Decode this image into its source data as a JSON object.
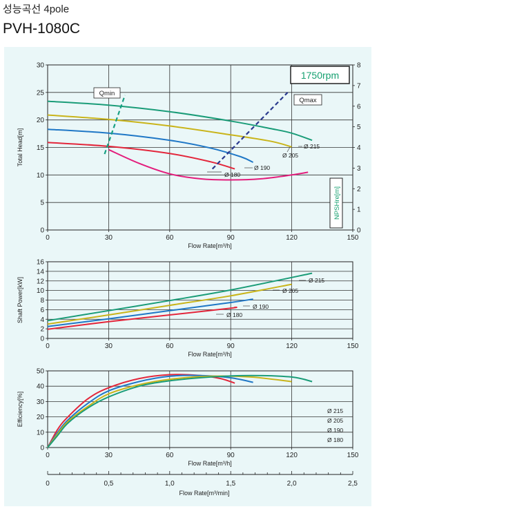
{
  "header": {
    "title": "성능곡선 4pole",
    "model": "PVH-1080C"
  },
  "colors": {
    "panel_bg": "#eaf7f8",
    "grid": "#222222",
    "d215": "#1a9c78",
    "d205": "#c9b41a",
    "d190": "#1f77c6",
    "d180": "#e3263b",
    "min_head": "#e31d7c",
    "qmin": "#18a083",
    "qmax": "#2a3a8e",
    "rpm": "#16a070"
  },
  "chart_data": [
    {
      "type": "line",
      "name": "head",
      "xlabel": "Flow Rate[m³/h]",
      "ylabel": "Total Head[m]",
      "y2label": "NPSHre[m]",
      "xlim": [
        0,
        150
      ],
      "ylim": [
        0,
        30
      ],
      "y2lim": [
        0,
        8
      ],
      "x_ticks": [
        "0",
        "30",
        "60",
        "90",
        "120",
        "150"
      ],
      "y_ticks": [
        "0",
        "5",
        "10",
        "15",
        "20",
        "25",
        "30"
      ],
      "y2_ticks": [
        "0",
        "1",
        "2",
        "3",
        "4",
        "5",
        "6",
        "7",
        "8"
      ],
      "grid": true,
      "speed_label": "1750rpm",
      "qmin_label": "Qmin",
      "qmax_label": "Qmax",
      "series": [
        {
          "label": "Ø 215",
          "color_key": "d215",
          "x": [
            0,
            30,
            60,
            90,
            110,
            120,
            130
          ],
          "y": [
            23.4,
            22.7,
            21.5,
            19.8,
            18.4,
            17.6,
            16.3
          ]
        },
        {
          "label": "Ø 205",
          "color_key": "d205",
          "x": [
            0,
            30,
            60,
            90,
            110,
            120
          ],
          "y": [
            20.9,
            20.1,
            18.9,
            17.3,
            16.1,
            15.1
          ]
        },
        {
          "label": "Ø 190",
          "color_key": "d190",
          "x": [
            0,
            30,
            60,
            80,
            95,
            101
          ],
          "y": [
            18.3,
            17.6,
            16.3,
            14.9,
            13.3,
            12.3
          ]
        },
        {
          "label": "Ø 180",
          "color_key": "d180",
          "x": [
            0,
            30,
            60,
            80,
            92
          ],
          "y": [
            15.9,
            15.2,
            13.9,
            12.4,
            11.1
          ]
        },
        {
          "label": "",
          "color_key": "min_head",
          "x": [
            30,
            45,
            60,
            75,
            90,
            105,
            120,
            128
          ],
          "y": [
            14.6,
            12.1,
            10.2,
            9.3,
            9.1,
            9.3,
            10.0,
            10.5
          ]
        }
      ],
      "qmin_line": {
        "x": [
          28,
          38
        ],
        "y": [
          13.8,
          24.5
        ]
      },
      "qmax_line": {
        "x": [
          81,
          118
        ],
        "y": [
          11.1,
          25.0
        ]
      }
    },
    {
      "type": "line",
      "name": "power",
      "xlabel": "Flow Rate[m³/h]",
      "ylabel": "Shaft Power[kW]",
      "xlim": [
        0,
        150
      ],
      "ylim": [
        0,
        16
      ],
      "x_ticks": [
        "0",
        "30",
        "60",
        "90",
        "120",
        "150"
      ],
      "y_ticks": [
        "0",
        "2",
        "4",
        "6",
        "8",
        "10",
        "12",
        "14",
        "16"
      ],
      "grid": true,
      "series": [
        {
          "label": "Ø 215",
          "color_key": "d215",
          "x": [
            0,
            30,
            60,
            90,
            130
          ],
          "y": [
            3.7,
            5.8,
            7.9,
            10.1,
            13.6
          ]
        },
        {
          "label": "Ø 205",
          "color_key": "d205",
          "x": [
            0,
            30,
            60,
            90,
            120
          ],
          "y": [
            3.0,
            4.9,
            6.9,
            8.9,
            11.3
          ]
        },
        {
          "label": "Ø 190",
          "color_key": "d190",
          "x": [
            0,
            30,
            60,
            90,
            101
          ],
          "y": [
            2.5,
            4.1,
            5.8,
            7.5,
            8.2
          ]
        },
        {
          "label": "Ø 180",
          "color_key": "d180",
          "x": [
            0,
            30,
            60,
            90,
            92
          ],
          "y": [
            1.9,
            3.5,
            4.9,
            6.3,
            6.5
          ]
        }
      ]
    },
    {
      "type": "line",
      "name": "efficiency",
      "xlabel": "Flow Rate[m³/h]",
      "ylabel": "Efficiency[%]",
      "xlim": [
        0,
        150
      ],
      "ylim": [
        0,
        50
      ],
      "x_ticks": [
        "0",
        "30",
        "60",
        "90",
        "120",
        "150"
      ],
      "y_ticks": [
        "0",
        "10",
        "20",
        "30",
        "40",
        "50"
      ],
      "grid": true,
      "legend": [
        "Ø 215",
        "Ø 205",
        "Ø 190",
        "Ø 180"
      ],
      "series": [
        {
          "label": "Ø 180",
          "color_key": "d180",
          "x": [
            0,
            5,
            10,
            20,
            30,
            45,
            60,
            75,
            85,
            92
          ],
          "y": [
            0,
            12,
            20,
            32,
            39,
            45,
            47.5,
            47,
            45,
            42
          ]
        },
        {
          "label": "Ø 190",
          "color_key": "d190",
          "x": [
            0,
            5,
            10,
            20,
            30,
            45,
            60,
            75,
            90,
            101
          ],
          "y": [
            0,
            10,
            18,
            29,
            37,
            43,
            46.5,
            47,
            45.5,
            42.5
          ]
        },
        {
          "label": "Ø 205",
          "color_key": "d205",
          "x": [
            0,
            5,
            10,
            20,
            30,
            45,
            60,
            80,
            100,
            120
          ],
          "y": [
            0,
            9,
            17,
            27,
            35,
            41,
            44.5,
            46.5,
            46,
            43
          ]
        },
        {
          "label": "Ø 215",
          "color_key": "d215",
          "x": [
            0,
            5,
            10,
            20,
            30,
            45,
            60,
            80,
            100,
            120,
            130
          ],
          "y": [
            0,
            8,
            16,
            26,
            33,
            40,
            43.5,
            46,
            47,
            46,
            43
          ]
        }
      ]
    },
    {
      "type": "axis",
      "name": "flow-min",
      "xlabel": "Flow Rate[m³/min]",
      "xlim": [
        0,
        2.5
      ],
      "x_ticks": [
        "0",
        "0,5",
        "1,0",
        "1,5",
        "2,0",
        "2,5"
      ]
    }
  ]
}
